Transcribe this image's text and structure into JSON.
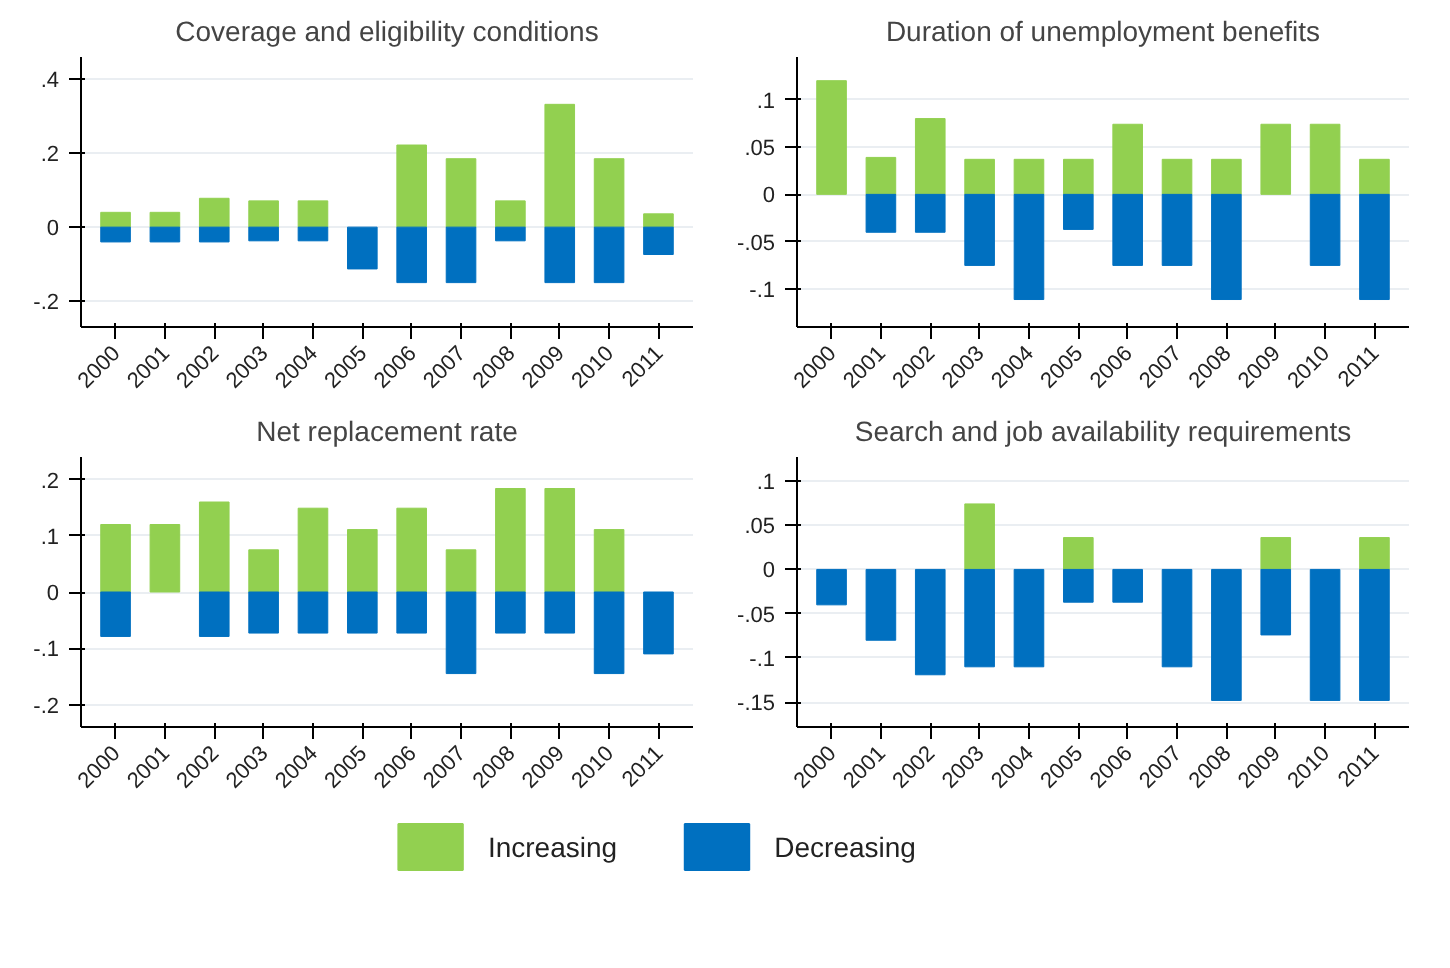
{
  "chart_data": [
    {
      "type": "bar",
      "title": "Coverage and eligibility conditions",
      "categories": [
        "2000",
        "2001",
        "2002",
        "2003",
        "2004",
        "2005",
        "2006",
        "2007",
        "2008",
        "2009",
        "2010",
        "2011"
      ],
      "ylim": [
        -0.27,
        0.46
      ],
      "yticks": [
        {
          "value": -0.2,
          "label": "-.2"
        },
        0,
        {
          "value": 0.2,
          "label": ".2"
        },
        {
          "value": 0.4,
          "label": ".4"
        }
      ],
      "grid": "y",
      "legend": "bottom",
      "stacked": true,
      "series": [
        {
          "name": "Increasing",
          "color": "#92d050",
          "values": [
            0.04,
            0.04,
            0.078,
            0.071,
            0.071,
            null,
            0.222,
            0.185,
            0.071,
            0.332,
            0.185,
            0.036
          ]
        },
        {
          "name": "Decreasing",
          "color": "#0070c0",
          "values": [
            -0.04,
            -0.04,
            -0.04,
            -0.037,
            -0.037,
            -0.113,
            -0.15,
            -0.15,
            -0.037,
            -0.15,
            -0.15,
            -0.074
          ]
        }
      ]
    },
    {
      "type": "bar",
      "title": "Duration of unemployment benefits",
      "categories": [
        "2000",
        "2001",
        "2002",
        "2003",
        "2004",
        "2005",
        "2006",
        "2007",
        "2008",
        "2009",
        "2010",
        "2011"
      ],
      "ylim": [
        -0.14,
        0.145
      ],
      "yticks": [
        {
          "value": -0.1,
          "label": "-.1"
        },
        {
          "value": -0.05,
          "label": "-.05"
        },
        0,
        {
          "value": 0.05,
          "label": ".05"
        },
        {
          "value": 0.1,
          "label": ".1"
        }
      ],
      "grid": "y",
      "stacked": true,
      "series": [
        {
          "color": "#92d050",
          "values": [
            0.12,
            0.039,
            0.08,
            0.037,
            0.037,
            0.037,
            0.074,
            0.037,
            0.037,
            0.074,
            0.074,
            0.037
          ]
        },
        {
          "color": "#0070c0",
          "values": [
            null,
            -0.04,
            -0.04,
            -0.075,
            -0.111,
            -0.037,
            -0.075,
            -0.075,
            -0.111,
            null,
            -0.075,
            -0.111
          ]
        }
      ]
    },
    {
      "type": "bar",
      "title": "Net replacement rate",
      "categories": [
        "2000",
        "2001",
        "2002",
        "2003",
        "2004",
        "2005",
        "2006",
        "2007",
        "2008",
        "2009",
        "2010",
        "2011"
      ],
      "ylim": [
        -0.24,
        0.24
      ],
      "yticks": [
        {
          "value": -0.2,
          "label": "-.2"
        },
        {
          "value": -0.1,
          "label": "-.1"
        },
        0,
        {
          "value": 0.1,
          "label": ".1"
        },
        {
          "value": 0.2,
          "label": ".2"
        }
      ],
      "grid": "y",
      "stacked": true,
      "series": [
        {
          "color": "#92d050",
          "values": [
            0.12,
            0.12,
            0.16,
            0.075,
            0.149,
            0.111,
            0.149,
            0.075,
            0.184,
            0.184,
            0.111,
            null
          ]
        },
        {
          "color": "#0070c0",
          "values": [
            -0.079,
            null,
            -0.079,
            -0.073,
            -0.073,
            -0.073,
            -0.073,
            -0.145,
            -0.073,
            -0.073,
            -0.145,
            -0.11
          ]
        }
      ]
    },
    {
      "type": "bar",
      "title": "Search and job availability requirements",
      "categories": [
        "2000",
        "2001",
        "2002",
        "2003",
        "2004",
        "2005",
        "2006",
        "2007",
        "2008",
        "2009",
        "2010",
        "2011"
      ],
      "ylim": [
        -0.178,
        0.127
      ],
      "yticks": [
        {
          "value": -0.15,
          "label": "-.15"
        },
        {
          "value": -0.1,
          "label": "-.1"
        },
        {
          "value": -0.05,
          "label": "-.05"
        },
        0,
        {
          "value": 0.05,
          "label": ".05"
        },
        {
          "value": 0.1,
          "label": ".1"
        }
      ],
      "grid": "y",
      "stacked": true,
      "series": [
        {
          "color": "#92d050",
          "values": [
            null,
            null,
            null,
            0.074,
            null,
            0.036,
            null,
            null,
            null,
            0.036,
            null,
            0.036
          ]
        },
        {
          "color": "#0070c0",
          "values": [
            -0.04,
            -0.08,
            -0.119,
            -0.11,
            -0.11,
            -0.037,
            -0.037,
            -0.11,
            -0.148,
            -0.074,
            -0.148,
            -0.148
          ]
        }
      ]
    }
  ]
}
